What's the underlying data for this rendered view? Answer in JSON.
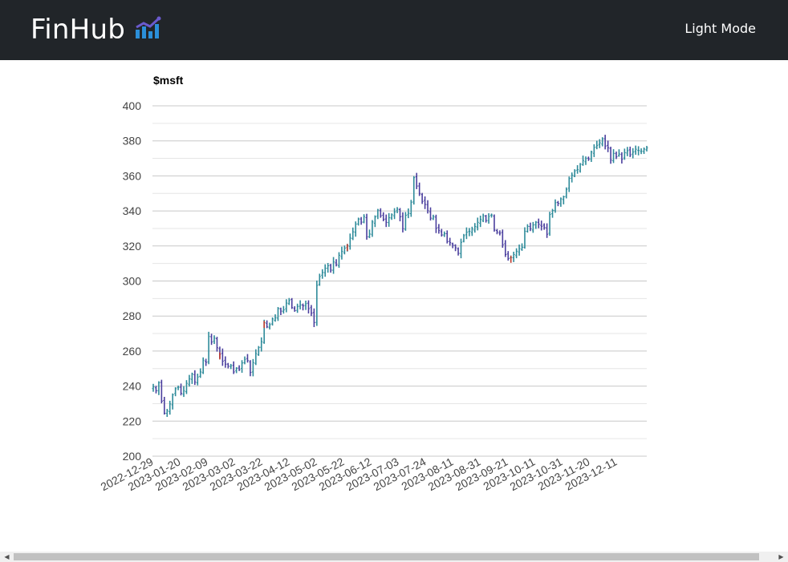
{
  "navbar": {
    "brand": "FinHub",
    "brand_icon": "bar-chart-trend-icon",
    "mode_toggle_label": "Light Mode",
    "background": "#212529",
    "text_color": "#ffffff"
  },
  "chart_data": {
    "type": "ohlc",
    "title": "$msft",
    "xlabel": "",
    "ylabel": "",
    "ylim": [
      200,
      400
    ],
    "yticks": [
      200,
      220,
      240,
      260,
      280,
      300,
      320,
      340,
      360,
      380,
      400
    ],
    "x_ticks": [
      "2022-12-29",
      "2023-01-20",
      "2023-02-09",
      "2023-03-02",
      "2023-03-22",
      "2023-04-12",
      "2023-05-02",
      "2023-05-22",
      "2023-06-12",
      "2023-07-03",
      "2023-07-24",
      "2023-08-11",
      "2023-08-31",
      "2023-09-21",
      "2023-10-11",
      "2023-10-31",
      "2023-11-20",
      "2023-12-11"
    ],
    "grid": true,
    "colors": {
      "up": "#2e8b9a",
      "down": "#4b3f9e",
      "highlight": "#c0392b",
      "grid": "#d0d0d0"
    },
    "close": [
      239.6,
      237.4,
      242.0,
      231.4,
      224.5,
      225.9,
      229.8,
      235.1,
      238.5,
      239.3,
      235.9,
      237.2,
      241.6,
      244.1,
      246.9,
      242.3,
      245.2,
      248.1,
      254.8,
      253.6,
      268.3,
      265.1,
      267.4,
      261.9,
      258.2,
      254.2,
      252.5,
      251.4,
      251.6,
      248.1,
      250.2,
      249.4,
      253.2,
      255.3,
      254.6,
      247.8,
      253.4,
      258.6,
      262.1,
      265.4,
      276.2,
      273.8,
      275.1,
      278.3,
      279.0,
      284.3,
      282.8,
      283.5,
      287.4,
      288.9,
      284.8,
      283.1,
      285.5,
      286.4,
      285.8,
      287.1,
      284.2,
      281.7,
      276.3,
      297.5,
      302.6,
      304.9,
      307.3,
      308.7,
      306.2,
      310.9,
      309.3,
      314.7,
      316.9,
      318.8,
      320.1,
      324.5,
      328.1,
      332.5,
      335.4,
      333.6,
      336.8,
      325.2,
      326.8,
      333.7,
      336.6,
      340.5,
      337.2,
      335.2,
      333.5,
      336.1,
      337.8,
      339.4,
      341.0,
      336.7,
      329.9,
      337.5,
      338.7,
      345.0,
      359.0,
      354.2,
      350.0,
      345.4,
      343.7,
      340.1,
      335.9,
      336.7,
      330.1,
      328.8,
      326.3,
      327.0,
      322.5,
      321.9,
      320.4,
      319.0,
      315.8,
      322.1,
      325.9,
      327.8,
      328.4,
      329.7,
      331.1,
      333.5,
      335.2,
      337.3,
      334.5,
      336.9,
      337.7,
      329.1,
      328.0,
      327.3,
      320.7,
      315.1,
      312.8,
      313.4,
      315.1,
      317.0,
      318.5,
      319.3,
      328.4,
      331.2,
      329.8,
      332.0,
      333.6,
      332.4,
      331.2,
      330.5,
      326.7,
      338.0,
      340.2,
      344.7,
      344.3,
      346.9,
      348.1,
      352.3,
      358.5,
      360.5,
      362.9,
      363.6,
      366.7,
      368.8,
      370.0,
      369.7,
      373.6,
      376.2,
      377.4,
      378.9,
      381.2,
      377.0,
      376.1,
      369.0,
      372.9,
      370.9,
      372.5,
      369.5,
      373.3,
      374.4,
      372.0,
      373.6,
      375.2,
      374.6,
      374.1,
      375.3,
      376.0
    ],
    "highlight_close": [
      275.8,
      258.1,
      319.9,
      343.2,
      313.7
    ]
  }
}
